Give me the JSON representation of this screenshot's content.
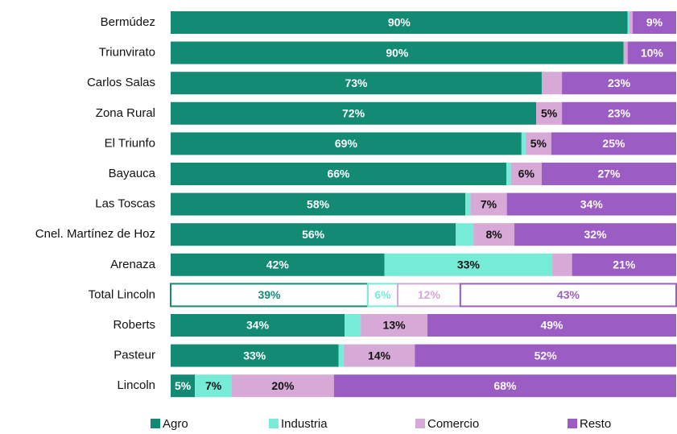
{
  "chart_data": {
    "type": "stacked_bar_horizontal",
    "categories": [
      "Bermúdez",
      "Triunvirato",
      "Carlos Salas",
      "Zona Rural",
      "El Triunfo",
      "Bayauca",
      "Las Toscas",
      "Cnel. Martínez de Hoz",
      "Arenaza",
      "Total Lincoln",
      "Roberts",
      "Pasteur",
      "Lincoln"
    ],
    "xlim": [
      0,
      100
    ],
    "outlined_categories": [
      9
    ],
    "legend": "bottom",
    "series": [
      {
        "name": "Agro",
        "color": "#138a74",
        "label_color": "#ffffff",
        "values": [
          90.4,
          89.6,
          73.4,
          72.3,
          69.4,
          66.4,
          58.3,
          56.4,
          42.3,
          39,
          34.4,
          33.2,
          4.8
        ],
        "value_labels": [
          "90%",
          "90%",
          "73%",
          "72%",
          "69%",
          "66%",
          "58%",
          "56%",
          "42%",
          "39%",
          "34%",
          "33%",
          "5%"
        ]
      },
      {
        "name": "Industria",
        "color": "#76ecd8",
        "label_color": "#111111",
        "values": [
          0.3,
          0,
          0,
          0,
          0.8,
          0.9,
          1,
          3.5,
          33.2,
          5.9,
          3.2,
          1,
          7.3
        ],
        "value_labels": [
          null,
          null,
          null,
          null,
          null,
          null,
          null,
          null,
          "33%",
          "6%",
          null,
          null,
          "7%"
        ]
      },
      {
        "name": "Comercio",
        "color": "#d6a9d6",
        "label_color": "#111111",
        "values": [
          0.7,
          0.8,
          4,
          5.1,
          5.1,
          6.1,
          7.2,
          8.1,
          3.9,
          12.4,
          13.2,
          14.1,
          20.2
        ],
        "value_labels": [
          null,
          null,
          null,
          "5%",
          "5%",
          "6%",
          "7%",
          "8%",
          null,
          "12%",
          "13%",
          "14%",
          "20%"
        ]
      },
      {
        "name": "Resto",
        "color": "#9b5cc4",
        "label_color": "#ffffff",
        "values": [
          8.6,
          9.6,
          22.6,
          22.6,
          24.7,
          26.6,
          33.5,
          32,
          20.6,
          42.7,
          49.2,
          51.7,
          67.7
        ],
        "value_labels": [
          "9%",
          "10%",
          "23%",
          "23%",
          "25%",
          "27%",
          "34%",
          "32%",
          "21%",
          "43%",
          "49%",
          "52%",
          "68%"
        ]
      }
    ]
  }
}
